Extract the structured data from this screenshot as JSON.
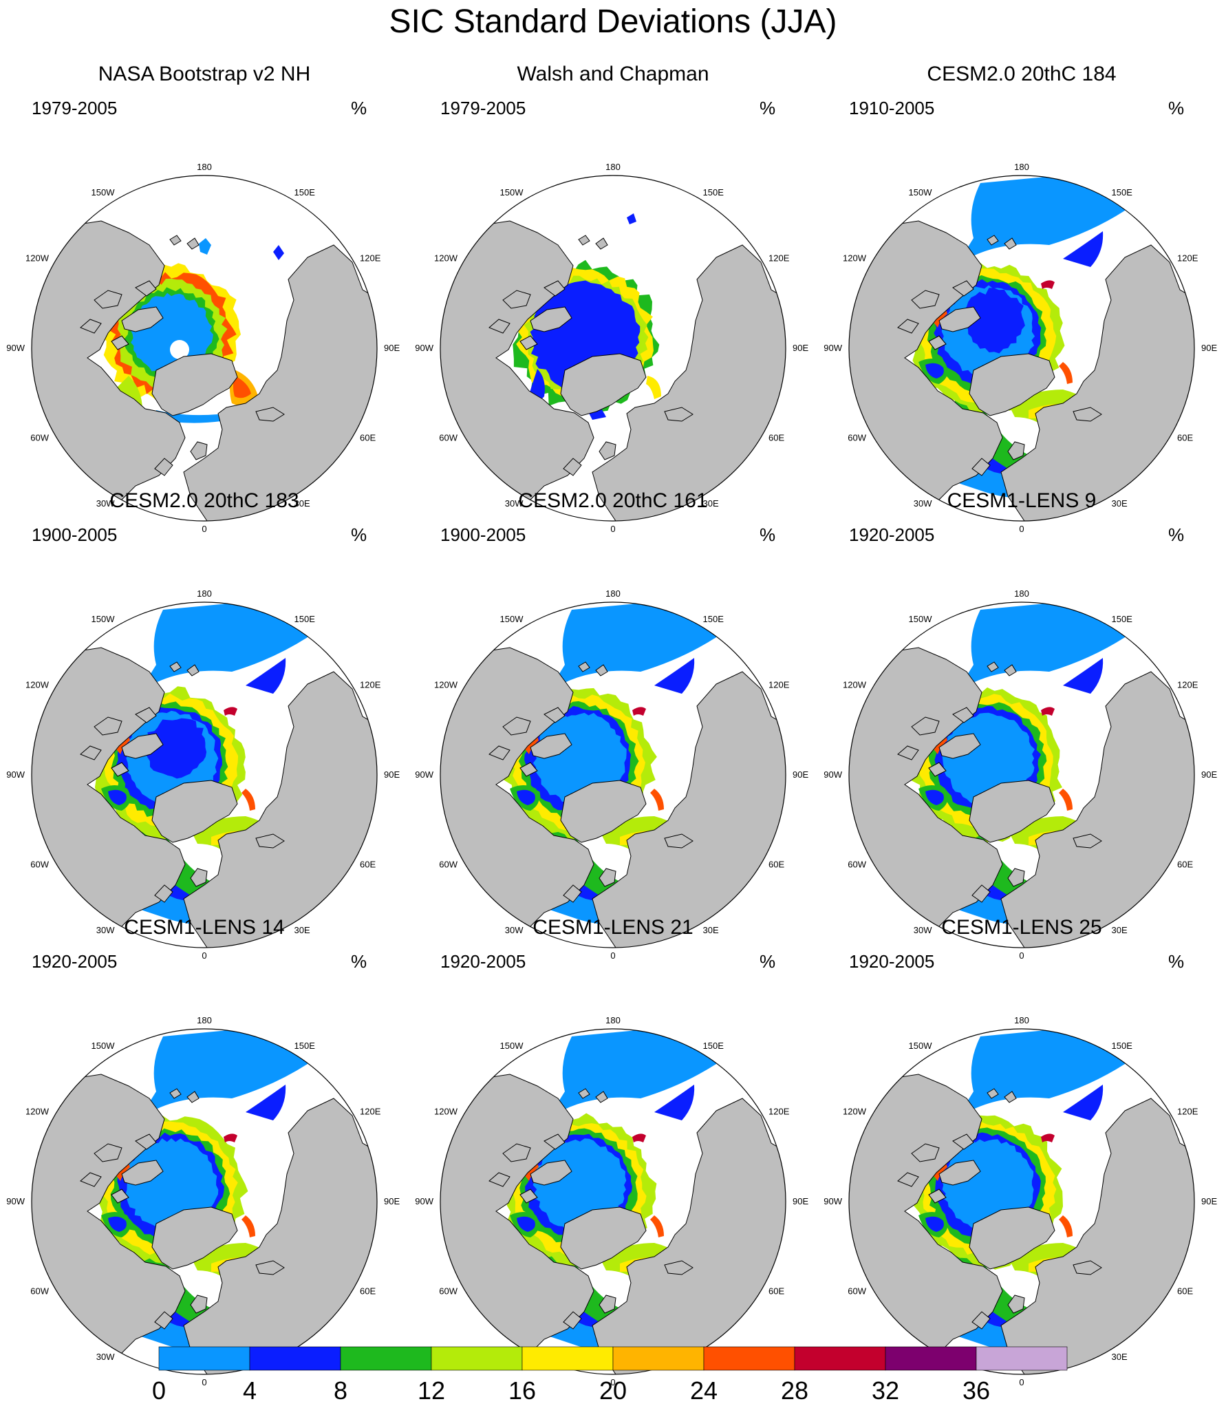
{
  "figure": {
    "title": "SIC Standard Deviations (JJA)"
  },
  "longitude_labels": [
    "180",
    "150E",
    "120E",
    "90E",
    "60E",
    "30E",
    "0",
    "30W",
    "60W",
    "90W",
    "120W",
    "150W"
  ],
  "panels": [
    {
      "title": "NASA Bootstrap v2 NH",
      "period": "1979-2005",
      "units": "%",
      "pattern": "obs1"
    },
    {
      "title": "Walsh and Chapman",
      "period": "1979-2005",
      "units": "%",
      "pattern": "obs2"
    },
    {
      "title": "CESM2.0 20thC 184",
      "period": "1910-2005",
      "units": "%",
      "pattern": "model"
    },
    {
      "title": "CESM2.0 20thC 183",
      "period": "1900-2005",
      "units": "%",
      "pattern": "model"
    },
    {
      "title": "CESM2.0 20thC 161",
      "period": "1900-2005",
      "units": "%",
      "pattern": "model"
    },
    {
      "title": "CESM1-LENS 9",
      "period": "1920-2005",
      "units": "%",
      "pattern": "model"
    },
    {
      "title": "CESM1-LENS 14",
      "period": "1920-2005",
      "units": "%",
      "pattern": "model"
    },
    {
      "title": "CESM1-LENS 21",
      "period": "1920-2005",
      "units": "%",
      "pattern": "model"
    },
    {
      "title": "CESM1-LENS 25",
      "period": "1920-2005",
      "units": "%",
      "pattern": "model"
    }
  ],
  "colorbar": {
    "labels": [
      "0",
      "4",
      "8",
      "12",
      "16",
      "20",
      "24",
      "28",
      "32",
      "36"
    ],
    "colors": [
      "#0a96ff",
      "#0a1eff",
      "#1eb91e",
      "#b4eb0a",
      "#ffeb00",
      "#ffb400",
      "#ff5000",
      "#c3002d",
      "#7d006e",
      "#c8a5d7"
    ]
  },
  "map_colors": {
    "land": "#bebebe",
    "ocean": "#ffffff",
    "coast": "#000000"
  }
}
